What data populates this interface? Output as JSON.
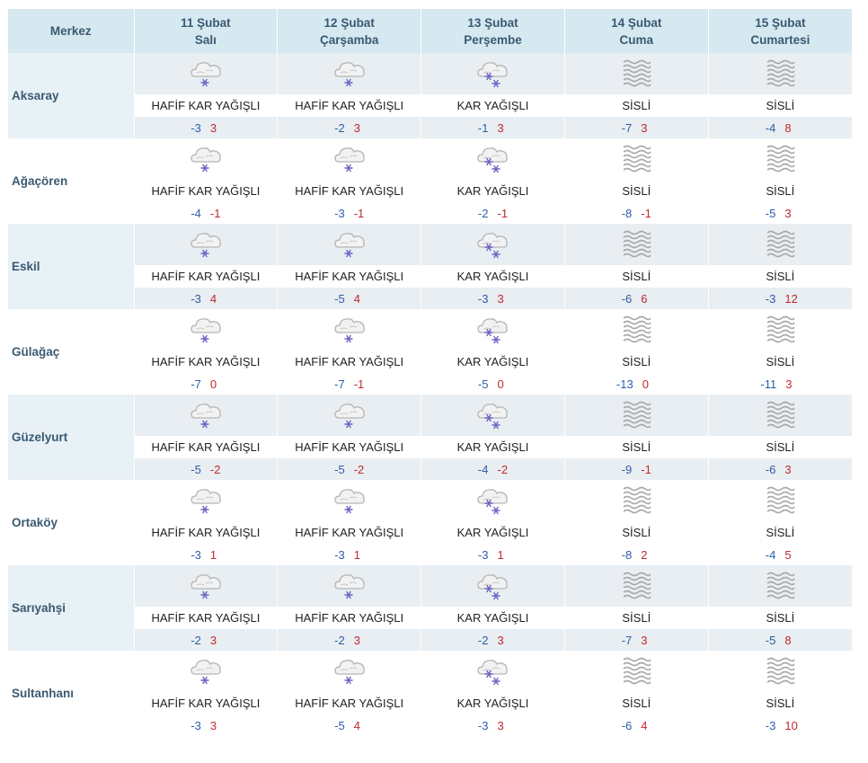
{
  "header": {
    "city_col": "Merkez",
    "days": [
      {
        "date": "11 Şubat",
        "weekday": "Salı"
      },
      {
        "date": "12 Şubat",
        "weekday": "Çarşamba"
      },
      {
        "date": "13 Şubat",
        "weekday": "Perşembe"
      },
      {
        "date": "14 Şubat",
        "weekday": "Cuma"
      },
      {
        "date": "15 Şubat",
        "weekday": "Cumartesi"
      }
    ]
  },
  "colors": {
    "low": "#2a5dab",
    "high": "#c0282d",
    "header_bg": "#d6e8f0"
  },
  "rows": [
    {
      "city": "Aksaray",
      "days": [
        {
          "icon": "light-snow-icon",
          "desc": "HAFİF KAR YAĞIŞLI",
          "low": "-3",
          "high": "3"
        },
        {
          "icon": "light-snow-icon",
          "desc": "HAFİF KAR YAĞIŞLI",
          "low": "-2",
          "high": "3"
        },
        {
          "icon": "snow-icon",
          "desc": "KAR YAĞIŞLI",
          "low": "-1",
          "high": "3"
        },
        {
          "icon": "fog-icon",
          "desc": "SİSLİ",
          "low": "-7",
          "high": "3"
        },
        {
          "icon": "fog-icon",
          "desc": "SİSLİ",
          "low": "-4",
          "high": "8"
        }
      ]
    },
    {
      "city": "Ağaçören",
      "days": [
        {
          "icon": "light-snow-icon",
          "desc": "HAFİF KAR YAĞIŞLI",
          "low": "-4",
          "high": "-1"
        },
        {
          "icon": "light-snow-icon",
          "desc": "HAFİF KAR YAĞIŞLI",
          "low": "-3",
          "high": "-1"
        },
        {
          "icon": "snow-icon",
          "desc": "KAR YAĞIŞLI",
          "low": "-2",
          "high": "-1"
        },
        {
          "icon": "fog-icon",
          "desc": "SİSLİ",
          "low": "-8",
          "high": "-1"
        },
        {
          "icon": "fog-icon",
          "desc": "SİSLİ",
          "low": "-5",
          "high": "3"
        }
      ]
    },
    {
      "city": "Eskil",
      "days": [
        {
          "icon": "light-snow-icon",
          "desc": "HAFİF KAR YAĞIŞLI",
          "low": "-3",
          "high": "4"
        },
        {
          "icon": "light-snow-icon",
          "desc": "HAFİF KAR YAĞIŞLI",
          "low": "-5",
          "high": "4"
        },
        {
          "icon": "snow-icon",
          "desc": "KAR YAĞIŞLI",
          "low": "-3",
          "high": "3"
        },
        {
          "icon": "fog-icon",
          "desc": "SİSLİ",
          "low": "-6",
          "high": "6"
        },
        {
          "icon": "fog-icon",
          "desc": "SİSLİ",
          "low": "-3",
          "high": "12"
        }
      ]
    },
    {
      "city": "Gülağaç",
      "days": [
        {
          "icon": "light-snow-icon",
          "desc": "HAFİF KAR YAĞIŞLI",
          "low": "-7",
          "high": "0"
        },
        {
          "icon": "light-snow-icon",
          "desc": "HAFİF KAR YAĞIŞLI",
          "low": "-7",
          "high": "-1"
        },
        {
          "icon": "snow-icon",
          "desc": "KAR YAĞIŞLI",
          "low": "-5",
          "high": "0"
        },
        {
          "icon": "fog-icon",
          "desc": "SİSLİ",
          "low": "-13",
          "high": "0"
        },
        {
          "icon": "fog-icon",
          "desc": "SİSLİ",
          "low": "-11",
          "high": "3"
        }
      ]
    },
    {
      "city": "Güzelyurt",
      "days": [
        {
          "icon": "light-snow-icon",
          "desc": "HAFİF KAR YAĞIŞLI",
          "low": "-5",
          "high": "-2"
        },
        {
          "icon": "light-snow-icon",
          "desc": "HAFİF KAR YAĞIŞLI",
          "low": "-5",
          "high": "-2"
        },
        {
          "icon": "snow-icon",
          "desc": "KAR YAĞIŞLI",
          "low": "-4",
          "high": "-2"
        },
        {
          "icon": "fog-icon",
          "desc": "SİSLİ",
          "low": "-9",
          "high": "-1"
        },
        {
          "icon": "fog-icon",
          "desc": "SİSLİ",
          "low": "-6",
          "high": "3"
        }
      ]
    },
    {
      "city": "Ortaköy",
      "days": [
        {
          "icon": "light-snow-icon",
          "desc": "HAFİF KAR YAĞIŞLI",
          "low": "-3",
          "high": "1"
        },
        {
          "icon": "light-snow-icon",
          "desc": "HAFİF KAR YAĞIŞLI",
          "low": "-3",
          "high": "1"
        },
        {
          "icon": "snow-icon",
          "desc": "KAR YAĞIŞLI",
          "low": "-3",
          "high": "1"
        },
        {
          "icon": "fog-icon",
          "desc": "SİSLİ",
          "low": "-8",
          "high": "2"
        },
        {
          "icon": "fog-icon",
          "desc": "SİSLİ",
          "low": "-4",
          "high": "5"
        }
      ]
    },
    {
      "city": "Sarıyahşi",
      "days": [
        {
          "icon": "light-snow-icon",
          "desc": "HAFİF KAR YAĞIŞLI",
          "low": "-2",
          "high": "3"
        },
        {
          "icon": "light-snow-icon",
          "desc": "HAFİF KAR YAĞIŞLI",
          "low": "-2",
          "high": "3"
        },
        {
          "icon": "snow-icon",
          "desc": "KAR YAĞIŞLI",
          "low": "-2",
          "high": "3"
        },
        {
          "icon": "fog-icon",
          "desc": "SİSLİ",
          "low": "-7",
          "high": "3"
        },
        {
          "icon": "fog-icon",
          "desc": "SİSLİ",
          "low": "-5",
          "high": "8"
        }
      ]
    },
    {
      "city": "Sultanhanı",
      "days": [
        {
          "icon": "light-snow-icon",
          "desc": "HAFİF KAR YAĞIŞLI",
          "low": "-3",
          "high": "3"
        },
        {
          "icon": "light-snow-icon",
          "desc": "HAFİF KAR YAĞIŞLI",
          "low": "-5",
          "high": "4"
        },
        {
          "icon": "snow-icon",
          "desc": "KAR YAĞIŞLI",
          "low": "-3",
          "high": "3"
        },
        {
          "icon": "fog-icon",
          "desc": "SİSLİ",
          "low": "-6",
          "high": "4"
        },
        {
          "icon": "fog-icon",
          "desc": "SİSLİ",
          "low": "-3",
          "high": "10"
        }
      ]
    }
  ]
}
